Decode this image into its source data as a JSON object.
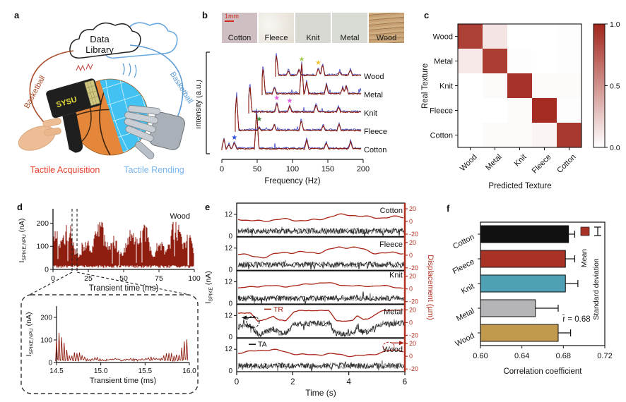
{
  "panels": {
    "a": "a",
    "b": "b",
    "c": "c",
    "d": "d",
    "e": "e",
    "f": "f"
  },
  "panel_a": {
    "cloud_line1": "Data",
    "cloud_line2": "Library",
    "left_curve_label": "Basketball",
    "right_curve_label": "Basketball",
    "device_label": "SYSU",
    "caption_left": "Tactile Acquisition",
    "caption_right": "Tactile Rending",
    "colors": {
      "acquisition": "#e8412c",
      "rendering": "#7ab6f0",
      "curve_left": "#a84a28",
      "curve_right": "#5b9bd5"
    }
  },
  "panel_b": {
    "scale_bar": "1mm",
    "samples": [
      "Cotton",
      "Fleece",
      "Knit",
      "Metal",
      "Wood"
    ],
    "sample_colors": [
      "#cfbfc2",
      "#eae4d8",
      "#d8d8d2",
      "#d9dcd4",
      "#cfae82"
    ],
    "ylabel": "Intensity (a.u.)",
    "xlabel": "Frequency (Hz)"
  },
  "panel_d": {
    "ylabel_main": "I",
    "ylabel_sub": "SPIKE,NPU",
    "ylabel_unit": " (nA)",
    "series_label": "Wood"
  },
  "panel_e": {
    "ylabel_main": "I",
    "ylabel_sub": "SPIKE",
    "ylabel_unit": " (nA)",
    "right_label": "Displacement (µm)",
    "xlabel": "Time (s)",
    "tr": "TR",
    "ta": "TA"
  },
  "chart_data": [
    {
      "id": "b-spectra",
      "type": "line",
      "xlabel": "Frequency (Hz)",
      "ylabel": "Intensity (a.u.)",
      "xlim": [
        0,
        200
      ],
      "xticks": [
        0,
        50,
        100,
        150,
        200
      ],
      "colors": {
        "main": "#8f1d10",
        "under": "#3d46c8",
        "dark": "#1a1a1a"
      },
      "series": [
        {
          "name": "Cotton",
          "peaks": [
            [
              3,
              14
            ],
            [
              10,
              6
            ],
            [
              18,
              9
            ],
            [
              50,
              55
            ],
            [
              122,
              13
            ],
            [
              150,
              9
            ],
            [
              185,
              11
            ]
          ],
          "stars": [
            {
              "x": 18,
              "color": "#2e4fd8"
            }
          ]
        },
        {
          "name": "Fleece",
          "peaks": [
            [
              2,
              52
            ],
            [
              38,
              4
            ],
            [
              62,
              8
            ],
            [
              105,
              15
            ],
            [
              140,
              7
            ],
            [
              165,
              9
            ]
          ],
          "stars": [
            {
              "x": 38,
              "color": "#3d8b37"
            }
          ]
        },
        {
          "name": "Knit",
          "peaks": [
            [
              2,
              40
            ],
            [
              50,
              13
            ],
            [
              73,
              9
            ],
            [
              120,
              11
            ],
            [
              160,
              7
            ]
          ],
          "stars": [
            {
              "x": 50,
              "color": "#e35de0"
            },
            {
              "x": 73,
              "color": "#e35de0"
            }
          ]
        },
        {
          "name": "Metal",
          "peaks": [
            [
              2,
              40
            ],
            [
              25,
              9
            ],
            [
              80,
              42
            ],
            [
              90,
              16
            ],
            [
              130,
              13
            ],
            [
              163,
              9
            ],
            [
              170,
              11
            ]
          ],
          "stars": [
            {
              "x": 80,
              "color": "#a8cc50"
            }
          ]
        },
        {
          "name": "Wood",
          "peaks": [
            [
              2,
              30
            ],
            [
              30,
              7
            ],
            [
              55,
              9
            ],
            [
              100,
              11
            ],
            [
              110,
              16
            ],
            [
              150,
              5
            ],
            [
              175,
              8
            ]
          ],
          "stars": [
            {
              "x": 100,
              "color": "#f2c233"
            }
          ]
        }
      ]
    },
    {
      "id": "c-confusion",
      "type": "heatmap",
      "rows": [
        "Wood",
        "Metal",
        "Knit",
        "Fleece",
        "Cotton"
      ],
      "cols": [
        "Wood",
        "Metal",
        "Knit",
        "Fleece",
        "Cotton"
      ],
      "values": [
        [
          0.88,
          0.12,
          0.0,
          0.0,
          0.01
        ],
        [
          0.1,
          0.89,
          0.01,
          0.0,
          0.01
        ],
        [
          0.0,
          0.02,
          0.94,
          0.02,
          0.02
        ],
        [
          0.0,
          0.0,
          0.02,
          0.97,
          0.01
        ],
        [
          0.0,
          0.02,
          0.02,
          0.05,
          0.91
        ]
      ],
      "row_axis": "Real Texture",
      "col_axis": "Predicted Texture",
      "vmin": 0.0,
      "vmax": 1.0,
      "colorbar_ticks": [
        "1.0",
        "0.5",
        "0.0"
      ],
      "color_low": "#ffffff",
      "color_high": "#a1251b"
    },
    {
      "id": "d-main",
      "type": "line",
      "label": "Wood",
      "xlabel": "Transient time (ms)",
      "xticks": [
        0,
        25,
        50,
        75,
        100
      ],
      "yticks": [
        0,
        100,
        200
      ],
      "xlim": [
        0,
        100
      ],
      "ylim": [
        0,
        250
      ],
      "zoom_window": [
        14.5,
        16.0
      ],
      "signal": {
        "baseline_nA": 8,
        "envelope_nA": [
          30,
          200
        ]
      },
      "color": "#8f1d10"
    },
    {
      "id": "d-inset",
      "type": "line",
      "xlabel": "Transient time (ms)",
      "xticks": [
        "14.5",
        "15.0",
        "15.5",
        "16.0"
      ],
      "yticks": [
        0,
        100,
        200
      ],
      "xlim": [
        14.5,
        16.0
      ],
      "ylim": [
        0,
        250
      ],
      "signal": {
        "shape": "spike train, amplitude decays then rises",
        "peak_nA": 130
      },
      "color": "#8f1d10"
    },
    {
      "id": "e-traces",
      "type": "line",
      "xlabel": "Time (s)",
      "xticks": [
        0,
        2,
        4,
        6
      ],
      "xlim": [
        0,
        6
      ],
      "left_yticks": [
        0,
        12
      ],
      "right_yticks": [
        20,
        0,
        -20
      ],
      "panels": [
        "Cotton",
        "Fleece",
        "Knit",
        "Metal",
        "Wood"
      ],
      "red_amplitude_scale": [
        1.0,
        1.3,
        0.7,
        1.0,
        0.9
      ],
      "metal_profile": [
        [
          0,
          15
        ],
        [
          0.5,
          15
        ],
        [
          0.75,
          2
        ],
        [
          1.1,
          6
        ],
        [
          1.3,
          10
        ],
        [
          1.5,
          4
        ],
        [
          1.75,
          3
        ],
        [
          2.05,
          17
        ],
        [
          2.2,
          19
        ],
        [
          3.3,
          19
        ],
        [
          3.55,
          3
        ],
        [
          3.9,
          2
        ],
        [
          4.15,
          4
        ],
        [
          4.3,
          11
        ],
        [
          4.5,
          5
        ],
        [
          4.7,
          6
        ],
        [
          5.0,
          14
        ],
        [
          5.2,
          19
        ],
        [
          6,
          20
        ]
      ],
      "colors": {
        "ta": "#111111",
        "tr": "#a82315",
        "axis_right": "#b03020"
      }
    },
    {
      "id": "f-bars",
      "type": "bar",
      "orientation": "horizontal",
      "categories": [
        "Cotton",
        "Fleece",
        "Knit",
        "Metal",
        "Wood"
      ],
      "values": [
        0.685,
        0.682,
        0.682,
        0.653,
        0.675
      ],
      "errors": [
        0.006,
        0.009,
        0.012,
        0.022,
        0.012
      ],
      "bar_colors": [
        "#111111",
        "#a93226",
        "#4f9fb5",
        "#b5b5b7",
        "#c29a4e"
      ],
      "xticks": [
        "0.60",
        "0.64",
        "0.68",
        "0.72"
      ],
      "xlim": [
        0.6,
        0.72
      ],
      "xlabel": "Correlation coefficient",
      "annotation": "r̄ = 0.68",
      "legend": [
        {
          "label": "Mean",
          "color": "#a93226"
        },
        {
          "label": "Standard deviation"
        }
      ]
    }
  ]
}
